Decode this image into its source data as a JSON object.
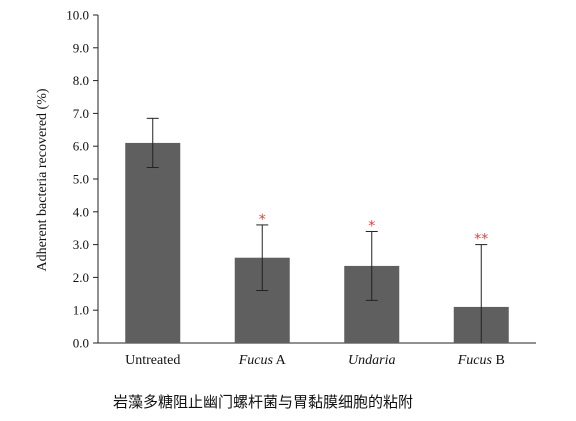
{
  "chart_data": {
    "type": "bar",
    "title": "",
    "xlabel": "",
    "ylabel": "Adherent bacteria recovered (%)",
    "ylim": [
      0,
      10
    ],
    "yticks": [
      "0.0",
      "1.0",
      "2.0",
      "3.0",
      "4.0",
      "5.0",
      "6.0",
      "7.0",
      "8.0",
      "9.0",
      "10.0"
    ],
    "categories": [
      {
        "prefix": "Untreated",
        "suffix": ""
      },
      {
        "prefix": "Fucus",
        "suffix": " A"
      },
      {
        "prefix": "Undaria",
        "suffix": ""
      },
      {
        "prefix": "Fucus",
        "suffix": " B"
      }
    ],
    "values": [
      6.1,
      2.6,
      2.35,
      1.1
    ],
    "error_upper": [
      6.85,
      3.6,
      3.4,
      3.0
    ],
    "error_lower": [
      5.35,
      1.6,
      1.3,
      0.0
    ],
    "significance": [
      "",
      "*",
      "*",
      "**"
    ],
    "bar_color": "#5f5f5f",
    "significance_color": "#e0403c",
    "grid": false
  },
  "caption": "岩藻多糖阻止幽门螺杆菌与胃黏膜细胞的粘附"
}
